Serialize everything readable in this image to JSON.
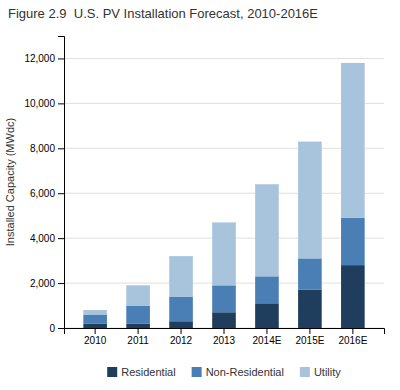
{
  "chart_data": {
    "type": "bar",
    "stacked": true,
    "title": "Figure 2.9  U.S. PV Installation Forecast, 2010-2016E",
    "ylabel": "Installed Capacity (MWdc)",
    "categories": [
      "2010",
      "2011",
      "2012",
      "2013",
      "2014E",
      "2015E",
      "2016E"
    ],
    "series": [
      {
        "name": "Residential",
        "color": "#1f3d5c",
        "values": [
          200,
          200,
          300,
          700,
          1100,
          1700,
          2800
        ]
      },
      {
        "name": "Non-Residential",
        "color": "#4a7fb5",
        "values": [
          400,
          800,
          1100,
          1200,
          1200,
          1400,
          2100
        ]
      },
      {
        "name": "Utility",
        "color": "#a8c4dc",
        "values": [
          200,
          900,
          1800,
          2800,
          4100,
          5200,
          6900
        ]
      }
    ],
    "ylim": [
      0,
      13000
    ],
    "yticks": [
      0,
      {
        "value": 2000,
        "label": "2,000"
      },
      {
        "value": 4000,
        "label": "4,000"
      },
      {
        "value": 6000,
        "label": "6,000"
      },
      {
        "value": 8000,
        "label": "8,000"
      },
      {
        "value": 10000,
        "label": "10,000"
      },
      {
        "value": 12000,
        "label": "12,000"
      }
    ],
    "grid": true,
    "legend": "bottom"
  }
}
